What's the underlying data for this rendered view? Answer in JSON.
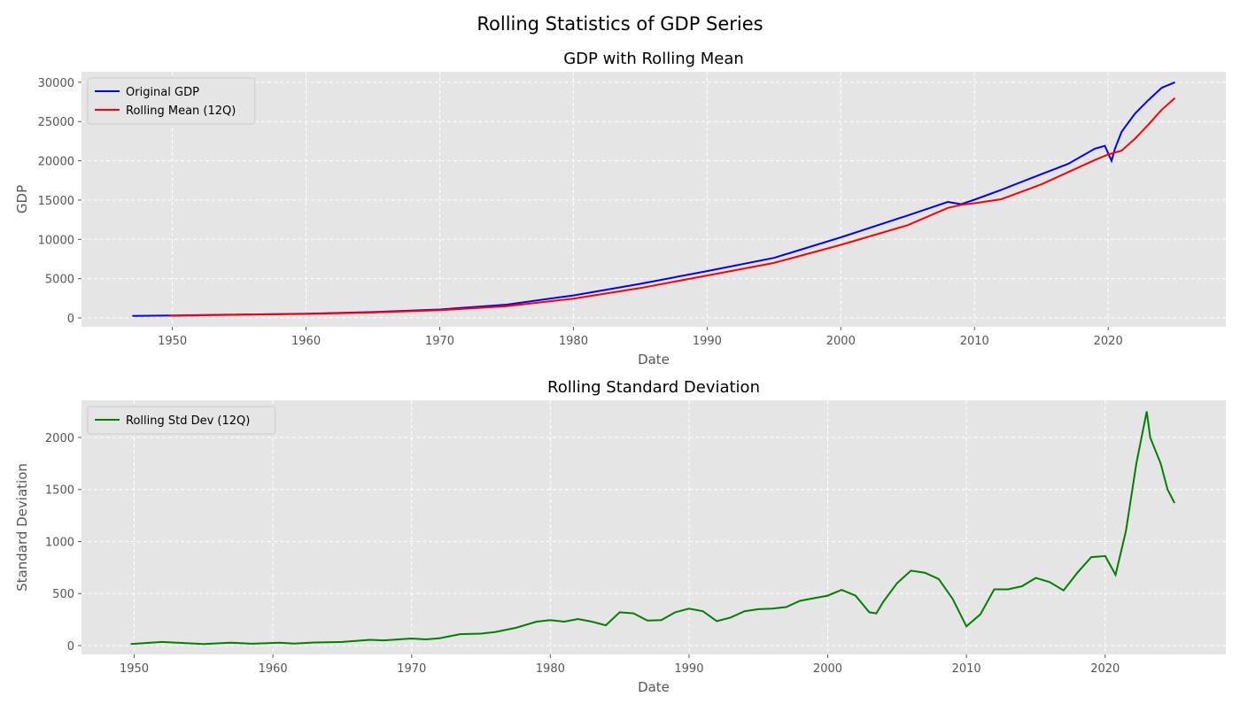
{
  "title": "Rolling Statistics of GDP Series",
  "chart_data": [
    {
      "type": "line",
      "title": "GDP with Rolling Mean",
      "x_label": "Date",
      "y_label": "GDP",
      "xlim": [
        1943.2,
        2028.8
      ],
      "ylim": [
        -1130,
        31340
      ],
      "xticks": [
        1950,
        1960,
        1970,
        1980,
        1990,
        2000,
        2010,
        2020
      ],
      "yticks": [
        0,
        5000,
        10000,
        15000,
        20000,
        25000,
        30000
      ],
      "grid": true,
      "legend": "upper left",
      "series": [
        {
          "name": "Original GDP",
          "color": "#0000ff",
          "x": [
            1947,
            1950,
            1955,
            1960,
            1965,
            1970,
            1975,
            1980,
            1985,
            1990,
            1995,
            2000,
            2005,
            2008,
            2009,
            2010,
            2012,
            2015,
            2017,
            2019,
            2019.75,
            2020.25,
            2020.5,
            2021,
            2022,
            2023,
            2024,
            2025
          ],
          "values": [
            243,
            300,
            426,
            543,
            743,
            1073,
            1685,
            2857,
            4339,
            5963,
            7640,
            10252,
            13039,
            14770,
            14478,
            15049,
            16300,
            18295,
            19600,
            21540,
            21900,
            20000,
            21500,
            23681,
            26007,
            27720,
            29300,
            30000
          ]
        },
        {
          "name": "Rolling Mean (12Q)",
          "color": "#ff0000",
          "x": [
            1949.75,
            1955,
            1960,
            1965,
            1970,
            1975,
            1980,
            1985,
            1990,
            1995,
            2000,
            2005,
            2008,
            2009,
            2010,
            2012,
            2015,
            2019,
            2020,
            2021,
            2022,
            2023,
            2024,
            2025
          ],
          "values": [
            270,
            400,
            510,
            680,
            980,
            1500,
            2450,
            3800,
            5400,
            7000,
            9300,
            11800,
            14000,
            14400,
            14600,
            15100,
            17000,
            20100,
            20800,
            21300,
            22800,
            24600,
            26500,
            28000
          ]
        }
      ]
    },
    {
      "type": "line",
      "title": "Rolling Standard Deviation",
      "x_label": "Date",
      "y_label": "Standard Deviation",
      "xlim": [
        1946.2,
        2028.7
      ],
      "ylim": [
        -85,
        2357
      ],
      "xticks": [
        1950,
        1960,
        1970,
        1980,
        1990,
        2000,
        2010,
        2020
      ],
      "yticks": [
        0,
        500,
        1000,
        1500,
        2000
      ],
      "grid": true,
      "legend": "upper left",
      "series": [
        {
          "name": "Rolling Std Dev (12Q)",
          "color": "#008000",
          "x": [
            1949.75,
            1952,
            1955,
            1957,
            1958.5,
            1960.5,
            1961.5,
            1963,
            1965,
            1967,
            1968,
            1970,
            1971,
            1972,
            1973.5,
            1975,
            1976,
            1977.5,
            1979,
            1980,
            1981,
            1982,
            1983,
            1984,
            1985,
            1986,
            1987,
            1988,
            1989,
            1990,
            1991,
            1992,
            1993,
            1994,
            1995,
            1996,
            1997,
            1998,
            1999,
            2000,
            2001,
            2002,
            2003,
            2003.5,
            2004,
            2005,
            2006,
            2007,
            2008,
            2009,
            2010,
            2011,
            2012,
            2013,
            2014,
            2015,
            2016,
            2017,
            2018,
            2019,
            2020,
            2020.75,
            2021.5,
            2022.25,
            2023,
            2023.25,
            2024,
            2024.5,
            2025
          ],
          "values": [
            15,
            35,
            15,
            28,
            18,
            28,
            20,
            30,
            35,
            55,
            50,
            68,
            60,
            70,
            110,
            115,
            130,
            170,
            230,
            245,
            230,
            255,
            230,
            195,
            320,
            310,
            240,
            245,
            320,
            355,
            330,
            235,
            270,
            330,
            350,
            355,
            370,
            430,
            455,
            480,
            535,
            480,
            320,
            310,
            420,
            600,
            720,
            700,
            640,
            450,
            185,
            300,
            540,
            540,
            570,
            650,
            610,
            530,
            700,
            850,
            860,
            680,
            1100,
            1750,
            2250,
            2000,
            1750,
            1500,
            1370
          ]
        }
      ]
    }
  ]
}
